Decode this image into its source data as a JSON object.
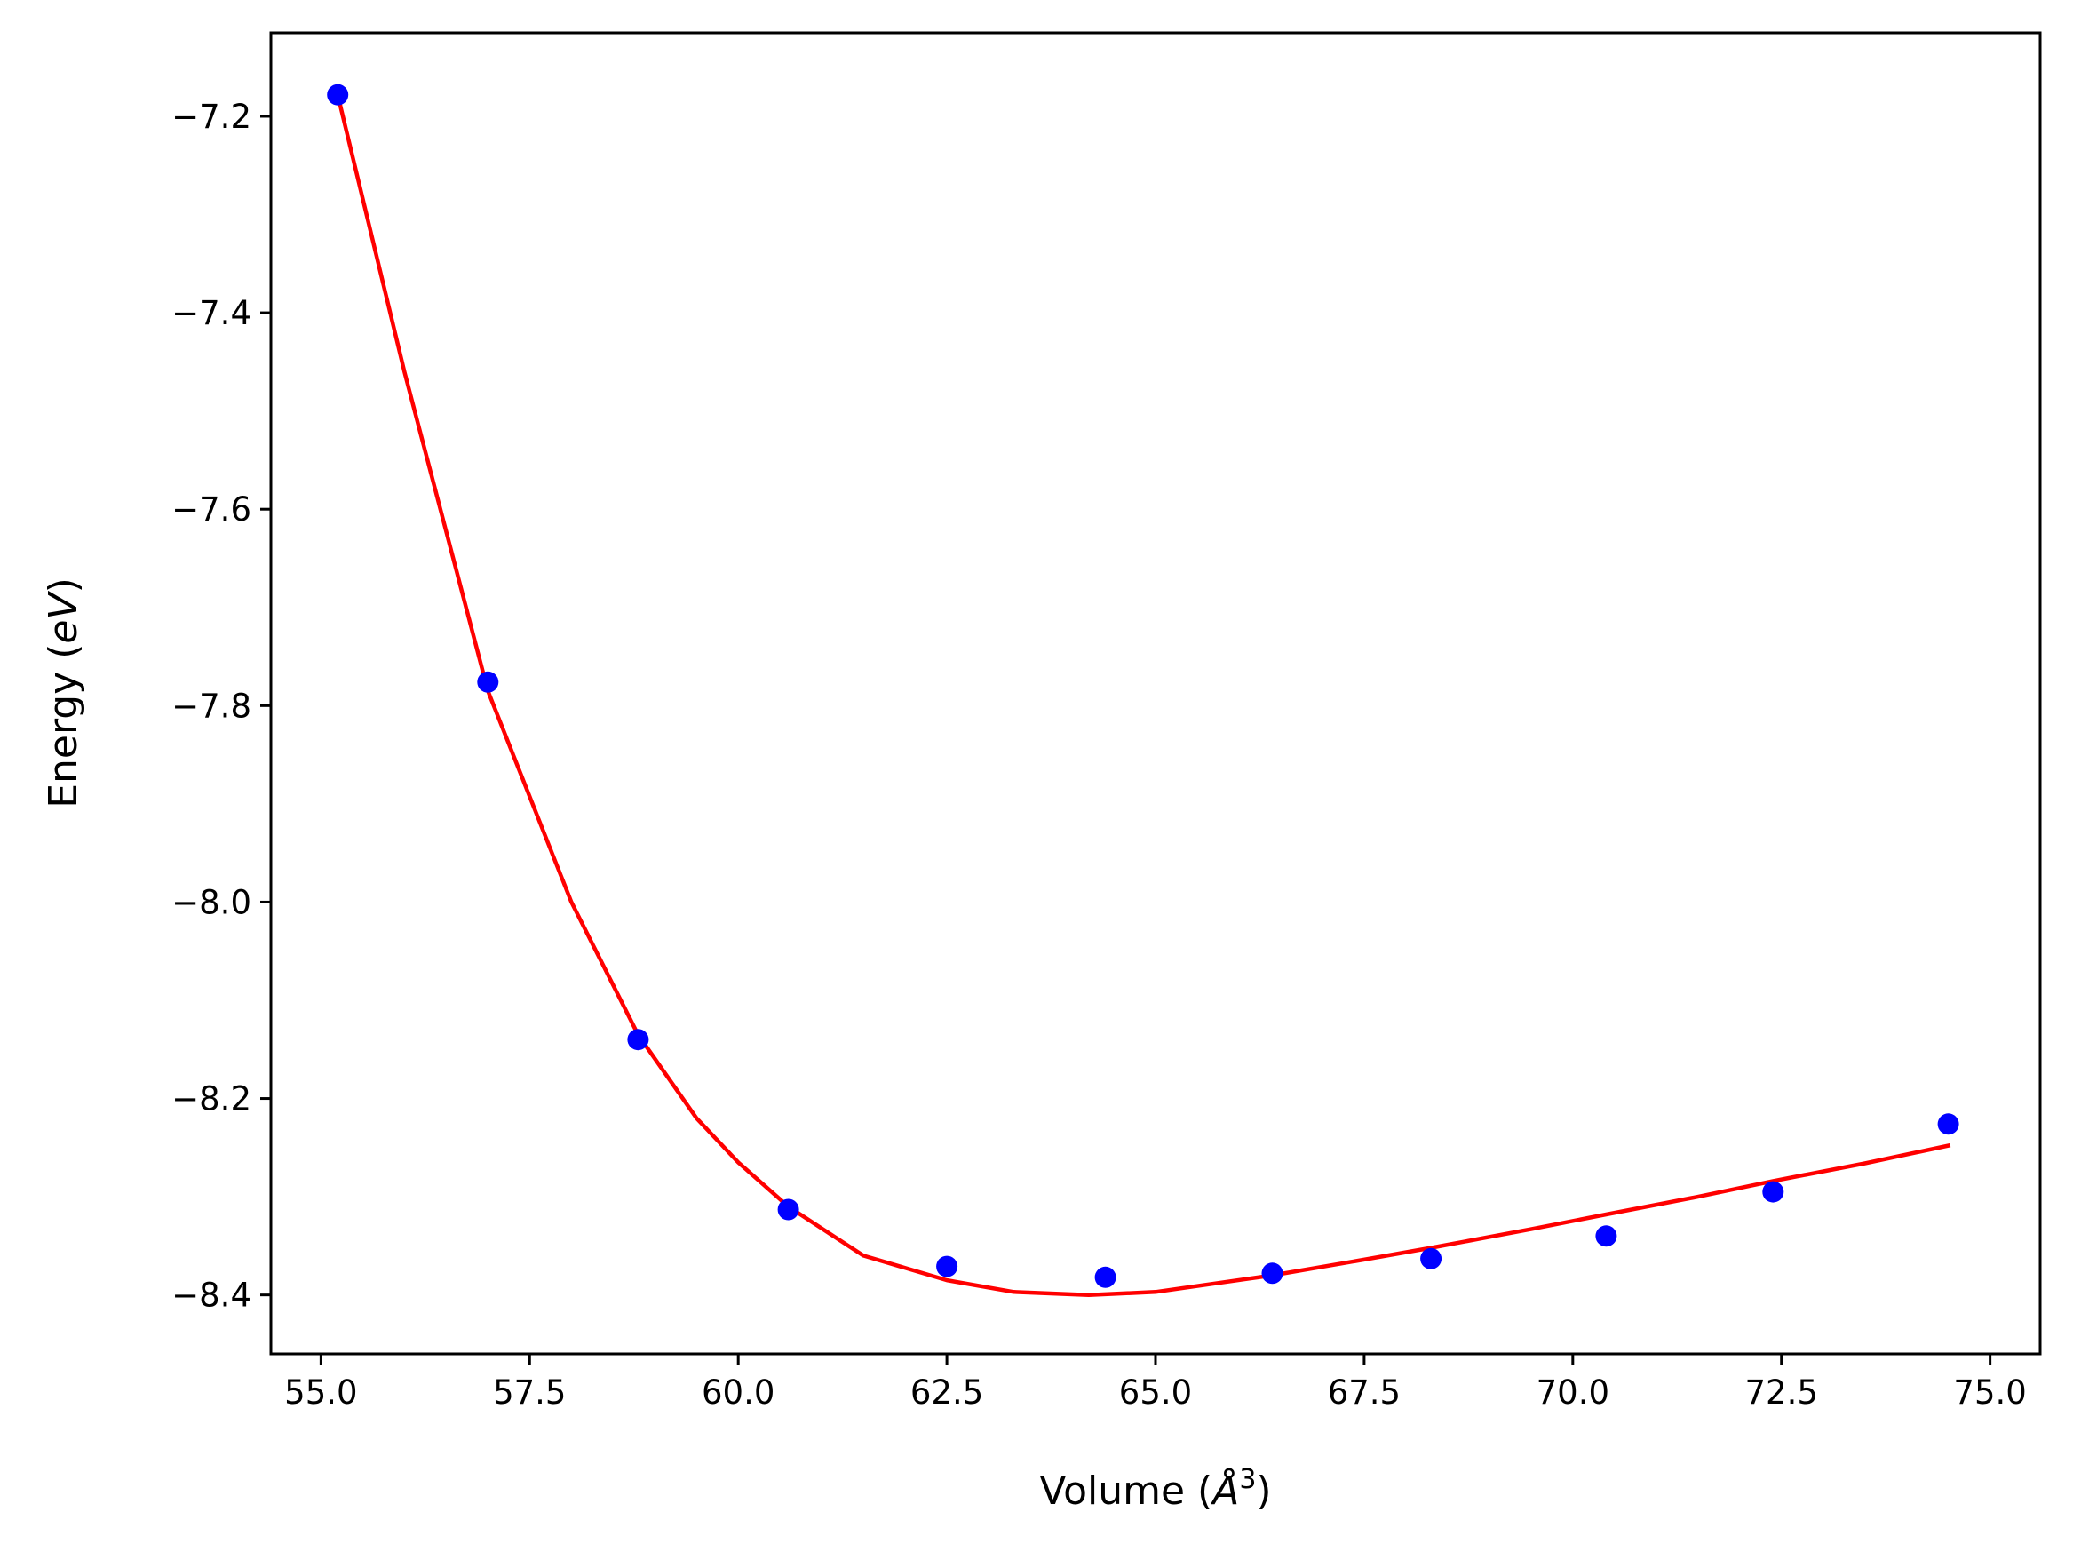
{
  "chart_data": {
    "type": "scatter",
    "xlabel": {
      "prefix": "Volume (",
      "unit": "Å",
      "exponent": "3",
      "suffix": ")"
    },
    "ylabel": {
      "prefix": "Energy (",
      "unit": "eV",
      "suffix": ")"
    },
    "xlim": [
      54.4,
      75.6
    ],
    "ylim": [
      -8.46,
      -7.115
    ],
    "xticks": [
      55.0,
      57.5,
      60.0,
      62.5,
      65.0,
      67.5,
      70.0,
      72.5,
      75.0
    ],
    "xtick_labels": [
      "55.0",
      "57.5",
      "60.0",
      "62.5",
      "65.0",
      "67.5",
      "70.0",
      "72.5",
      "75.0"
    ],
    "yticks": [
      -7.2,
      -7.4,
      -7.6,
      -7.8,
      -8.0,
      -8.2,
      -8.4
    ],
    "ytick_labels": [
      "−7.2",
      "−7.4",
      "−7.6",
      "−7.8",
      "−8.0",
      "−8.2",
      "−8.4"
    ],
    "grid": false,
    "series": [
      {
        "kind": "points",
        "color": "#0000ff",
        "x": [
          55.2,
          57.0,
          58.8,
          60.6,
          62.5,
          64.4,
          66.4,
          68.3,
          70.4,
          72.4,
          74.5
        ],
        "y": [
          -7.178,
          -7.776,
          -8.14,
          -8.313,
          -8.371,
          -8.382,
          -8.378,
          -8.363,
          -8.34,
          -8.295,
          -8.226
        ]
      },
      {
        "kind": "fit-line",
        "color": "#ff0000",
        "x": [
          55.2,
          56.0,
          57.0,
          58.0,
          58.8,
          59.5,
          60.0,
          60.6,
          61.5,
          62.5,
          63.3,
          64.2,
          65.0,
          66.4,
          67.5,
          68.3,
          69.5,
          70.4,
          71.5,
          72.4,
          73.5,
          74.5
        ],
        "y": [
          -7.178,
          -7.46,
          -7.785,
          -8.0,
          -8.135,
          -8.22,
          -8.265,
          -8.31,
          -8.36,
          -8.385,
          -8.397,
          -8.4,
          -8.397,
          -8.38,
          -8.364,
          -8.352,
          -8.333,
          -8.318,
          -8.3,
          -8.284,
          -8.266,
          -8.248
        ]
      }
    ]
  }
}
